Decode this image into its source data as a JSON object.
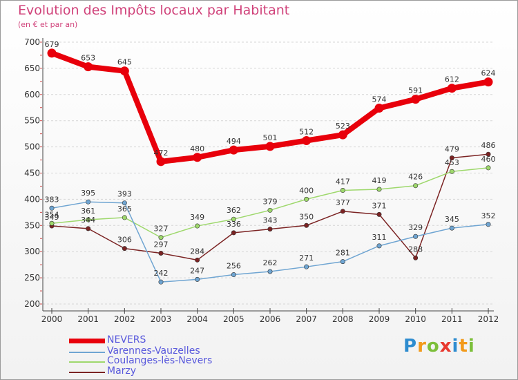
{
  "header": {
    "title": "Evolution des Impôts locaux par Habitant",
    "subtitle": "(en € et par an)"
  },
  "logo": {
    "text": "Proxiti",
    "letters": [
      "P",
      "r",
      "o",
      "x",
      "i",
      "t",
      "i"
    ],
    "colors": [
      "#2e8ccf",
      "#f29a1b",
      "#7cbf3a",
      "#e8392f",
      "#2e8ccf",
      "#f29a1b",
      "#7cbf3a"
    ]
  },
  "chart_data": {
    "type": "line",
    "title": "Evolution des Impôts locaux par Habitant",
    "subtitle": "(en € et par an)",
    "xlabel": "",
    "ylabel": "",
    "x": [
      "2000",
      "2001",
      "2002",
      "2003",
      "2004",
      "2005",
      "2006",
      "2007",
      "2008",
      "2009",
      "2010",
      "2011",
      "2012"
    ],
    "ylim": [
      200,
      700
    ],
    "yticks": [
      200,
      250,
      300,
      350,
      400,
      450,
      500,
      550,
      600,
      650,
      700
    ],
    "grid": "horizontal",
    "legend_position": "bottom-left",
    "series": [
      {
        "name": "NEVERS",
        "color": "#e8000b",
        "values": [
          679,
          653,
          645,
          472,
          480,
          494,
          501,
          512,
          523,
          574,
          591,
          612,
          624
        ]
      },
      {
        "name": "Varennes-Vauzelles",
        "color": "#6fa5d2",
        "values": [
          383,
          395,
          393,
          242,
          247,
          256,
          262,
          271,
          281,
          311,
          329,
          345,
          352
        ]
      },
      {
        "name": "Coulanges-lès-Nevers",
        "color": "#9ed86c",
        "values": [
          354,
          361,
          365,
          327,
          349,
          362,
          379,
          400,
          417,
          419,
          426,
          453,
          460
        ]
      },
      {
        "name": "Marzy",
        "color": "#7b2323",
        "values": [
          349,
          344,
          306,
          297,
          284,
          336,
          343,
          350,
          377,
          371,
          288,
          479,
          486
        ]
      }
    ]
  }
}
